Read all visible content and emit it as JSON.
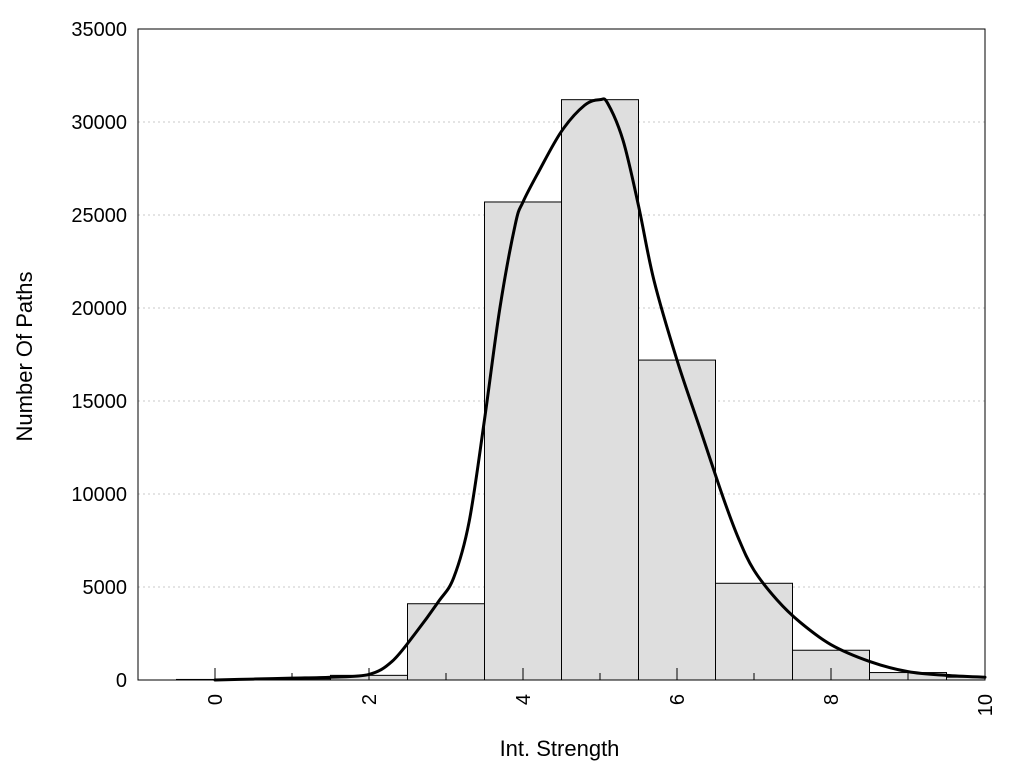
{
  "chart_data": {
    "type": "bar",
    "title": "",
    "xlabel": "Int. Strength",
    "ylabel": "Number Of Paths",
    "xlim": [
      -1,
      10
    ],
    "ylim": [
      0,
      35000
    ],
    "x_ticks": [
      "0",
      "2",
      "4",
      "6",
      "8",
      "10"
    ],
    "y_ticks": [
      "0",
      "5000",
      "10000",
      "15000",
      "20000",
      "25000",
      "30000",
      "35000"
    ],
    "grid": "horizontal dotted",
    "legend": "none",
    "colors": {
      "bar_fill": "#dedede",
      "bar_edge": "#000000",
      "curve": "#000000",
      "grid": "#c8c8c8"
    },
    "bins": [
      {
        "center": 0,
        "value": 30
      },
      {
        "center": 1,
        "value": 60
      },
      {
        "center": 2,
        "value": 250
      },
      {
        "center": 3,
        "value": 4100
      },
      {
        "center": 4,
        "value": 25700
      },
      {
        "center": 5,
        "value": 31200
      },
      {
        "center": 6,
        "value": 17200
      },
      {
        "center": 7,
        "value": 5200
      },
      {
        "center": 8,
        "value": 1600
      },
      {
        "center": 9,
        "value": 400
      },
      {
        "center": 10,
        "value": 150
      }
    ],
    "curve": {
      "x": [
        0,
        0.5,
        1.0,
        1.5,
        2.0,
        2.3,
        2.6,
        2.9,
        3.1,
        3.3,
        3.5,
        3.7,
        3.9,
        4.0,
        4.2,
        4.5,
        4.8,
        5.0,
        5.1,
        5.3,
        5.5,
        5.7,
        6.0,
        6.3,
        6.6,
        6.8,
        7.0,
        7.3,
        7.6,
        8.0,
        8.5,
        9.0,
        9.5,
        10.0
      ],
      "y": [
        0,
        50,
        100,
        150,
        300,
        1000,
        2500,
        4200,
        5500,
        8500,
        14000,
        20000,
        24500,
        25700,
        27300,
        29500,
        30900,
        31200,
        31000,
        29000,
        25500,
        21500,
        17200,
        13500,
        9800,
        7600,
        5900,
        4300,
        3100,
        1900,
        1000,
        450,
        250,
        150
      ]
    }
  }
}
